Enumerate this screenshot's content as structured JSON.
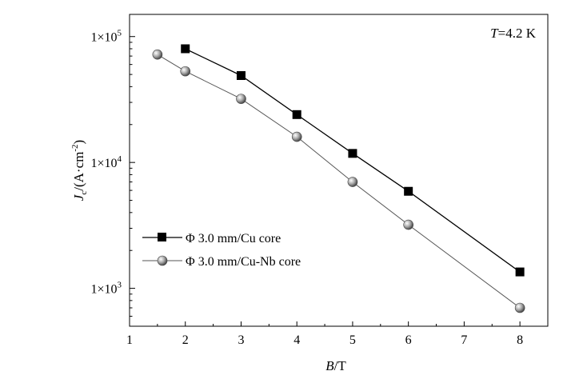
{
  "chart_data": {
    "type": "line",
    "title": "",
    "xlabel_var": "B",
    "xlabel_unit": "/T",
    "ylabel_main": "J",
    "ylabel_sub": "c",
    "ylabel_unit": "/(A·cm",
    "ylabel_exp": "-2",
    "ylabel_close": ")",
    "annotation": {
      "var": "T",
      "text": "=4.2 K"
    },
    "xlim": [
      1,
      8.5
    ],
    "ylim": [
      500,
      150000
    ],
    "yscale": "log",
    "xticks": [
      1,
      2,
      3,
      4,
      5,
      6,
      7,
      8
    ],
    "yticks": [
      {
        "value": 1000,
        "mant": "1×10",
        "exp": "3"
      },
      {
        "value": 10000,
        "mant": "1×10",
        "exp": "4"
      },
      {
        "value": 100000,
        "mant": "1×10",
        "exp": "5"
      }
    ],
    "legend_position": "left",
    "series": [
      {
        "name": "Φ 3.0 mm/Cu core",
        "marker": "square",
        "color": "#000000",
        "x": [
          2,
          3,
          4,
          5,
          6,
          8
        ],
        "y": [
          80000,
          49000,
          24000,
          11800,
          5900,
          1350
        ]
      },
      {
        "name": "Φ 3.0 mm/Cu-Nb core",
        "marker": "sphere",
        "color": "#555555",
        "x": [
          1.5,
          2,
          3,
          4,
          5,
          6,
          8
        ],
        "y": [
          72000,
          53000,
          32000,
          16000,
          7000,
          3200,
          700
        ]
      }
    ]
  }
}
